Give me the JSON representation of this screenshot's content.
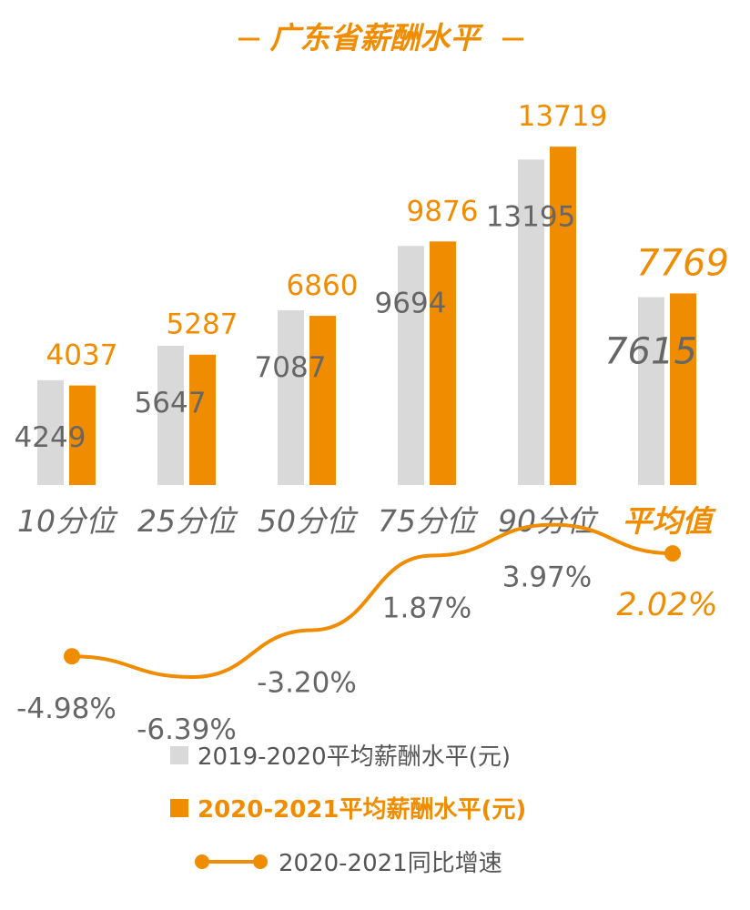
{
  "colors": {
    "prev": "#d9d9d9",
    "curr": "#f08c00",
    "text_gray": "#666666",
    "accent": "#f08c00"
  },
  "chart_data": {
    "type": "bar",
    "title": "广东省薪酬水平",
    "categories": [
      "10分位",
      "25分位",
      "50分位",
      "75分位",
      "90分位",
      "平均值"
    ],
    "series": [
      {
        "name": "2019-2020平均薪酬水平(元)",
        "values": [
          4249,
          5647,
          7087,
          9694,
          13195,
          7615
        ]
      },
      {
        "name": "2020-2021平均薪酬水平(元)",
        "values": [
          4037,
          5287,
          6860,
          9876,
          13719,
          7769
        ]
      }
    ],
    "line_series": {
      "name": "2020-2021同比增速",
      "values": [
        -4.98,
        -6.39,
        -3.2,
        1.87,
        3.97,
        2.02
      ],
      "labels": [
        "-4.98%",
        "-6.39%",
        "-3.20%",
        "1.87%",
        "3.97%",
        "2.02%"
      ],
      "markers_on": [
        0,
        5
      ]
    },
    "ylim": [
      0,
      14500
    ],
    "grid": false,
    "legend_placement": "bottom"
  }
}
